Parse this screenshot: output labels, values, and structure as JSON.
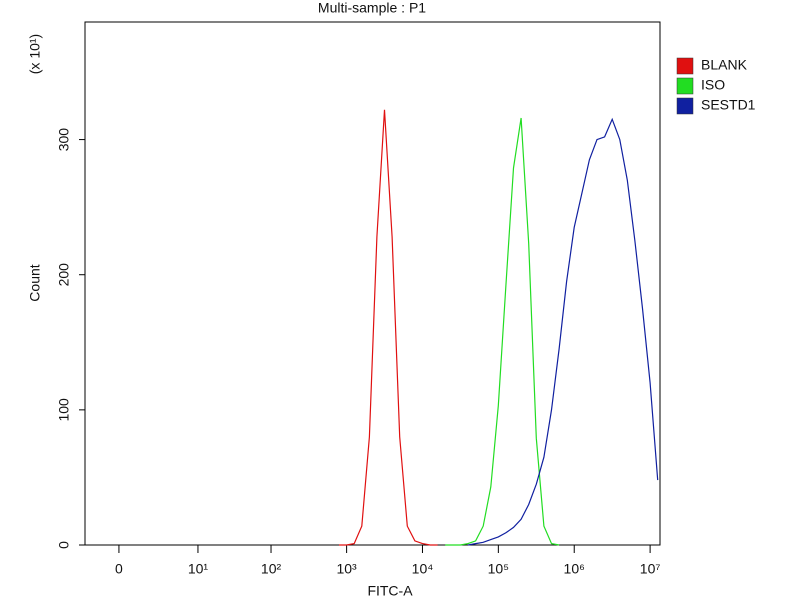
{
  "chart_data": {
    "type": "line",
    "title": "Multi-sample : P1",
    "x_label": "FITC-A",
    "y_label": "Count",
    "y_multiplier": "(x 10¹)",
    "xscale": "symlog",
    "x": [
      794,
      1000,
      1259,
      1585,
      1995,
      2512,
      3162,
      3981,
      5012,
      6310,
      7943,
      10000,
      12589,
      15849,
      19953,
      25119,
      31623,
      39811,
      50119,
      63096,
      79433,
      100000,
      125893,
      158489,
      199526,
      251189,
      316228,
      398107,
      501187,
      630957,
      794328,
      1000000,
      1258925,
      1584893,
      1995262,
      2511886,
      3162278,
      3981072,
      5011872,
      6309573,
      7943282,
      10000000,
      12589254
    ],
    "series": [
      {
        "name": "BLANK",
        "color": "#e01010",
        "values": [
          0,
          0,
          1,
          14,
          80,
          228,
          322,
          228,
          80,
          14,
          3,
          1,
          0,
          0,
          null,
          null,
          null,
          null,
          null,
          null,
          null,
          null,
          null,
          null,
          null,
          null,
          null,
          null,
          null,
          null,
          null,
          null,
          null,
          null,
          null,
          null,
          null,
          null,
          null,
          null,
          null,
          null,
          null
        ]
      },
      {
        "name": "ISO",
        "color": "#22dd22",
        "values": [
          null,
          null,
          null,
          null,
          null,
          null,
          null,
          null,
          null,
          null,
          null,
          null,
          null,
          null,
          0,
          0,
          0,
          1,
          3,
          14,
          43,
          103,
          192,
          279,
          316,
          223,
          79,
          14,
          1,
          0,
          null,
          null,
          null,
          null,
          null,
          null,
          null,
          null,
          null,
          null,
          null,
          null,
          null
        ]
      },
      {
        "name": "SESTD1",
        "color": "#1020a0",
        "values": [
          null,
          null,
          null,
          null,
          null,
          null,
          null,
          null,
          null,
          null,
          null,
          null,
          null,
          null,
          null,
          null,
          null,
          0,
          1,
          2,
          4,
          6,
          9,
          13,
          19,
          30,
          45,
          65,
          100,
          145,
          195,
          235,
          260,
          285,
          300,
          302,
          315,
          300,
          270,
          225,
          175,
          120,
          48
        ]
      }
    ],
    "xlim": [
      -1.8,
      13500000
    ],
    "xticks": [
      0,
      {
        "value": 10,
        "label": "10¹"
      },
      {
        "value": 100,
        "label": "10²"
      },
      {
        "value": 1000,
        "label": "10³"
      },
      {
        "value": 10000,
        "label": "10⁴"
      },
      {
        "value": 100000,
        "label": "10⁵"
      },
      {
        "value": 1000000,
        "label": "10⁶"
      },
      {
        "value": 10000000,
        "label": "10⁷"
      }
    ],
    "ylim": [
      0,
      387
    ],
    "yticks": [
      0,
      100,
      200,
      300
    ],
    "legend": "outside right",
    "grid": false
  }
}
